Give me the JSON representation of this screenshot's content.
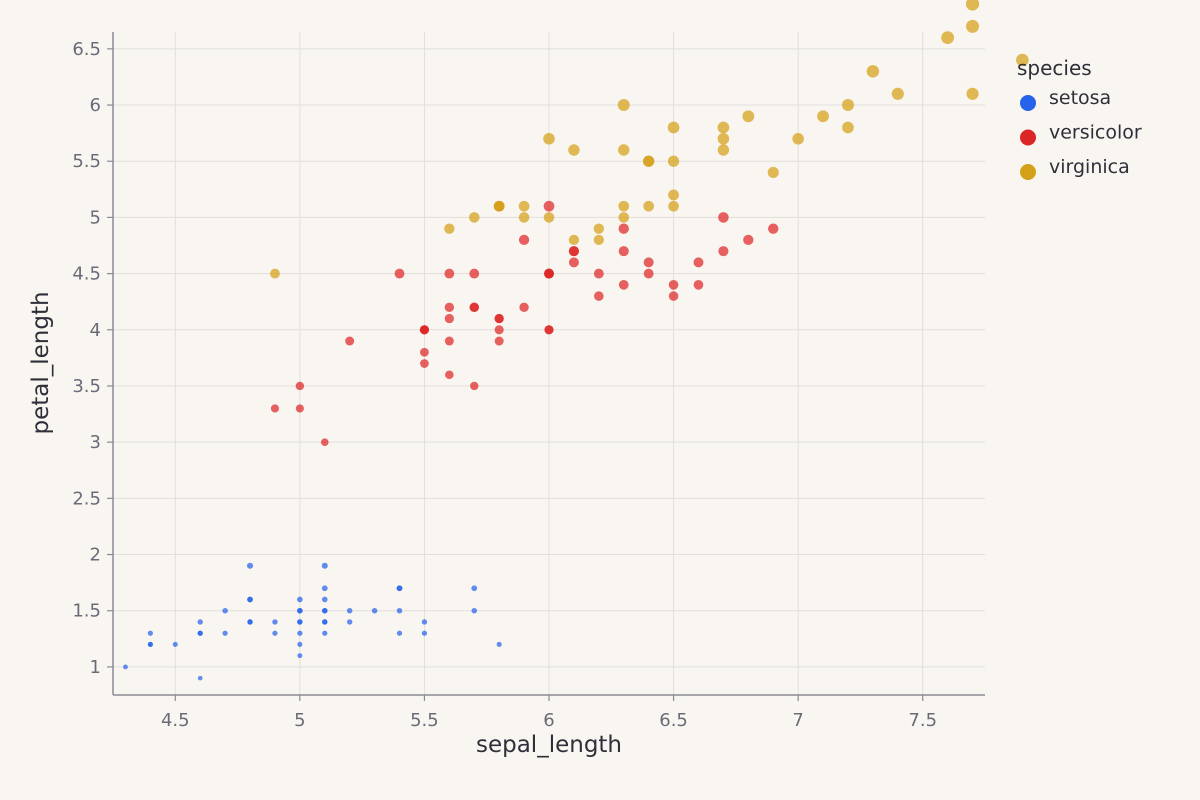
{
  "chart_data": {
    "type": "scatter",
    "xlabel": "sepal_length",
    "ylabel": "petal_length",
    "xlim": [
      4.25,
      7.75
    ],
    "ylim": [
      0.75,
      6.65
    ],
    "x_ticks": [
      4.5,
      5,
      5.5,
      6,
      6.5,
      7,
      7.5
    ],
    "x_tick_labels": [
      "4.5",
      "5",
      "5.5",
      "6",
      "6.5",
      "7",
      "7.5"
    ],
    "y_ticks": [
      1,
      1.5,
      2,
      2.5,
      3,
      3.5,
      4,
      4.5,
      5,
      5.5,
      6,
      6.5
    ],
    "y_tick_labels": [
      "1",
      "1.5",
      "2",
      "2.5",
      "3",
      "3.5",
      "4",
      "4.5",
      "5",
      "5.5",
      "6",
      "6.5"
    ],
    "grid": true,
    "legend": {
      "title": "species",
      "position": "top-right"
    },
    "series": [
      {
        "name": "setosa",
        "color": "#2563eb",
        "points": [
          [
            4.3,
            1.0
          ],
          [
            4.4,
            1.2
          ],
          [
            4.4,
            1.3
          ],
          [
            4.4,
            1.2
          ],
          [
            4.5,
            1.2
          ],
          [
            4.6,
            1.4
          ],
          [
            4.6,
            1.3
          ],
          [
            4.6,
            1.3
          ],
          [
            4.6,
            0.9
          ],
          [
            4.7,
            1.3
          ],
          [
            4.7,
            1.5
          ],
          [
            4.8,
            1.6
          ],
          [
            4.8,
            1.4
          ],
          [
            4.8,
            1.9
          ],
          [
            4.8,
            1.6
          ],
          [
            4.8,
            1.4
          ],
          [
            4.9,
            1.4
          ],
          [
            4.9,
            1.3
          ],
          [
            5.0,
            1.5
          ],
          [
            5.0,
            1.4
          ],
          [
            5.0,
            1.2
          ],
          [
            5.0,
            1.1
          ],
          [
            5.0,
            1.6
          ],
          [
            5.0,
            1.3
          ],
          [
            5.0,
            1.4
          ],
          [
            5.0,
            1.5
          ],
          [
            5.1,
            1.4
          ],
          [
            5.1,
            1.5
          ],
          [
            5.1,
            1.9
          ],
          [
            5.1,
            1.7
          ],
          [
            5.1,
            1.6
          ],
          [
            5.1,
            1.5
          ],
          [
            5.1,
            1.4
          ],
          [
            5.1,
            1.3
          ],
          [
            5.2,
            1.5
          ],
          [
            5.2,
            1.4
          ],
          [
            5.3,
            1.5
          ],
          [
            5.4,
            1.7
          ],
          [
            5.4,
            1.5
          ],
          [
            5.4,
            1.3
          ],
          [
            5.4,
            1.7
          ],
          [
            5.5,
            1.3
          ],
          [
            5.5,
            1.4
          ],
          [
            5.7,
            1.7
          ],
          [
            5.7,
            1.5
          ],
          [
            5.8,
            1.2
          ]
        ]
      },
      {
        "name": "versicolor",
        "color": "#dc2626",
        "points": [
          [
            4.9,
            3.3
          ],
          [
            5.0,
            3.5
          ],
          [
            5.0,
            3.3
          ],
          [
            5.1,
            3.0
          ],
          [
            5.2,
            3.9
          ],
          [
            5.4,
            4.5
          ],
          [
            5.5,
            4.0
          ],
          [
            5.5,
            4.0
          ],
          [
            5.5,
            3.8
          ],
          [
            5.5,
            3.7
          ],
          [
            5.5,
            4.0
          ],
          [
            5.6,
            4.5
          ],
          [
            5.6,
            4.2
          ],
          [
            5.6,
            3.6
          ],
          [
            5.6,
            4.1
          ],
          [
            5.6,
            3.9
          ],
          [
            5.7,
            4.2
          ],
          [
            5.7,
            4.5
          ],
          [
            5.7,
            3.5
          ],
          [
            5.7,
            4.2
          ],
          [
            5.8,
            4.1
          ],
          [
            5.8,
            3.9
          ],
          [
            5.8,
            4.0
          ],
          [
            5.8,
            4.1
          ],
          [
            5.9,
            4.2
          ],
          [
            5.9,
            4.8
          ],
          [
            6.0,
            4.5
          ],
          [
            6.0,
            4.5
          ],
          [
            6.0,
            4.0
          ],
          [
            6.0,
            5.1
          ],
          [
            6.0,
            4.0
          ],
          [
            6.0,
            4.5
          ],
          [
            6.1,
            4.6
          ],
          [
            6.1,
            4.7
          ],
          [
            6.1,
            4.7
          ],
          [
            6.2,
            4.3
          ],
          [
            6.2,
            4.5
          ],
          [
            6.3,
            4.7
          ],
          [
            6.3,
            4.9
          ],
          [
            6.3,
            4.4
          ],
          [
            6.4,
            4.5
          ],
          [
            6.4,
            4.6
          ],
          [
            6.5,
            4.4
          ],
          [
            6.5,
            4.3
          ],
          [
            6.6,
            4.4
          ],
          [
            6.6,
            4.6
          ],
          [
            6.7,
            4.7
          ],
          [
            6.7,
            5.0
          ],
          [
            6.8,
            4.8
          ],
          [
            6.9,
            4.9
          ]
        ]
      },
      {
        "name": "virginica",
        "color": "#d4a017",
        "points": [
          [
            4.9,
            4.5
          ],
          [
            5.6,
            4.9
          ],
          [
            5.7,
            5.0
          ],
          [
            5.8,
            5.1
          ],
          [
            5.8,
            5.1
          ],
          [
            5.8,
            5.1
          ],
          [
            5.9,
            5.0
          ],
          [
            5.9,
            5.1
          ],
          [
            6.0,
            5.0
          ],
          [
            6.0,
            5.7
          ],
          [
            6.1,
            5.6
          ],
          [
            6.1,
            4.8
          ],
          [
            6.2,
            4.9
          ],
          [
            6.2,
            4.8
          ],
          [
            6.3,
            6.0
          ],
          [
            6.3,
            5.1
          ],
          [
            6.3,
            5.6
          ],
          [
            6.4,
            5.5
          ],
          [
            6.4,
            5.5
          ],
          [
            6.5,
            5.8
          ],
          [
            6.5,
            5.2
          ],
          [
            6.5,
            5.5
          ],
          [
            6.7,
            5.8
          ],
          [
            6.7,
            5.7
          ],
          [
            6.7,
            5.6
          ],
          [
            6.8,
            5.9
          ],
          [
            6.9,
            5.4
          ],
          [
            7.0,
            5.7
          ],
          [
            7.1,
            5.9
          ],
          [
            7.2,
            6.0
          ],
          [
            7.2,
            5.8
          ],
          [
            7.3,
            6.3
          ],
          [
            7.4,
            6.1
          ],
          [
            7.6,
            6.6
          ],
          [
            7.7,
            6.9
          ],
          [
            7.7,
            6.7
          ],
          [
            7.7,
            6.1
          ],
          [
            7.9,
            6.4
          ],
          [
            6.3,
            5.0
          ],
          [
            6.4,
            5.1
          ],
          [
            6.5,
            5.1
          ]
        ]
      }
    ]
  }
}
